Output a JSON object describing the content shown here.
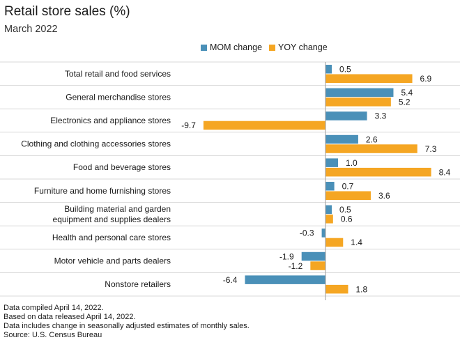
{
  "chart_data": {
    "type": "bar",
    "orientation": "horizontal",
    "title": "Retail store sales (%)",
    "subtitle": "March 2022",
    "categories": [
      "Total retail and food services",
      "General merchandise stores",
      "Electronics and appliance stores",
      "Clothing and clothing accessories stores",
      "Food and beverage stores",
      "Furniture and home furnishing stores",
      "Building material and garden\nequipment and supplies dealers",
      "Health and personal care stores",
      "Motor vehicle and parts dealers",
      "Nonstore retailers"
    ],
    "series": [
      {
        "name": "MOM change",
        "color": "#4a90b8",
        "values": [
          0.5,
          5.4,
          3.3,
          2.6,
          1.0,
          0.7,
          0.5,
          -0.3,
          -1.9,
          -6.4
        ]
      },
      {
        "name": "YOY change",
        "color": "#f5a623",
        "values": [
          6.9,
          5.2,
          -9.7,
          7.3,
          8.4,
          3.6,
          0.6,
          1.4,
          -1.2,
          1.8
        ]
      }
    ],
    "value_labels": {
      "MOM change": [
        "0.5",
        "5.4",
        "3.3",
        "2.6",
        "1.0",
        "0.7",
        "0.5",
        "-0.3",
        "-1.9",
        "-6.4"
      ],
      "YOY change": [
        "6.9",
        "5.2",
        "-9.7",
        "7.3",
        "8.4",
        "3.6",
        "0.6",
        "1.4",
        "-1.2",
        "1.8"
      ]
    },
    "legend_position": "top",
    "grid": "horizontal separators between categories"
  },
  "footnotes": [
    "Data compiled April 14, 2022.",
    "Based on data released April 14, 2022.",
    "Data includes change in seasonally adjusted estimates of monthly sales.",
    "Source: U.S. Census Bureau"
  ]
}
